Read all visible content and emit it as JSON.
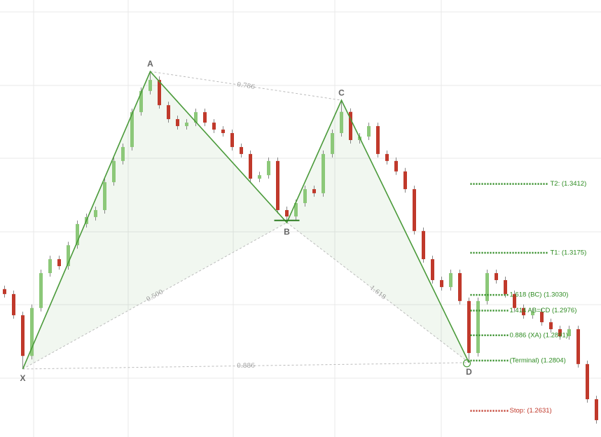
{
  "chart_data": {
    "type": "candlestick",
    "xlim": [
      -0.5,
      65.5
    ],
    "ylim": [
      1.2541,
      1.4045
    ],
    "up_color": "#8cc879",
    "down_color": "#c0392b",
    "ohlc": [
      [
        1.305,
        1.3062,
        1.3021,
        1.3033
      ],
      [
        1.3033,
        1.3045,
        1.2948,
        1.296
      ],
      [
        1.296,
        1.2972,
        1.2775,
        1.282
      ],
      [
        1.282,
        1.2997,
        1.2808,
        1.2985
      ],
      [
        1.2985,
        1.3117,
        1.2973,
        1.3105
      ],
      [
        1.3105,
        1.3165,
        1.3093,
        1.3153
      ],
      [
        1.3153,
        1.3165,
        1.3117,
        1.3129
      ],
      [
        1.3129,
        1.3213,
        1.3117,
        1.3201
      ],
      [
        1.3201,
        1.3286,
        1.3189,
        1.3274
      ],
      [
        1.3274,
        1.331,
        1.3262,
        1.3298
      ],
      [
        1.3298,
        1.3334,
        1.3286,
        1.3322
      ],
      [
        1.3322,
        1.343,
        1.331,
        1.3418
      ],
      [
        1.3418,
        1.3503,
        1.3406,
        1.3491
      ],
      [
        1.3491,
        1.3551,
        1.3479,
        1.3539
      ],
      [
        1.3539,
        1.3671,
        1.3527,
        1.3659
      ],
      [
        1.3659,
        1.3744,
        1.3647,
        1.3732
      ],
      [
        1.3732,
        1.3799,
        1.372,
        1.377
      ],
      [
        1.377,
        1.3782,
        1.3671,
        1.3683
      ],
      [
        1.3683,
        1.3695,
        1.3623,
        1.3635
      ],
      [
        1.3635,
        1.3647,
        1.3599,
        1.3611
      ],
      [
        1.3611,
        1.3635,
        1.3599,
        1.3623
      ],
      [
        1.3623,
        1.3671,
        1.3611,
        1.3659
      ],
      [
        1.3659,
        1.3671,
        1.3611,
        1.3623
      ],
      [
        1.3623,
        1.3635,
        1.3587,
        1.3599
      ],
      [
        1.3599,
        1.3611,
        1.3575,
        1.3587
      ],
      [
        1.3587,
        1.3599,
        1.3527,
        1.3539
      ],
      [
        1.3539,
        1.3551,
        1.3503,
        1.3515
      ],
      [
        1.3515,
        1.3527,
        1.3418,
        1.343
      ],
      [
        1.343,
        1.3454,
        1.3418,
        1.3442
      ],
      [
        1.3442,
        1.3503,
        1.343,
        1.3491
      ],
      [
        1.3491,
        1.3503,
        1.331,
        1.3322
      ],
      [
        1.3322,
        1.3334,
        1.3279,
        1.33
      ],
      [
        1.33,
        1.3358,
        1.3288,
        1.3346
      ],
      [
        1.3346,
        1.3406,
        1.3334,
        1.3394
      ],
      [
        1.3394,
        1.3406,
        1.3368,
        1.338
      ],
      [
        1.338,
        1.3527,
        1.3368,
        1.3515
      ],
      [
        1.3515,
        1.3599,
        1.3503,
        1.3587
      ],
      [
        1.3587,
        1.37,
        1.3575,
        1.366
      ],
      [
        1.366,
        1.3672,
        1.3551,
        1.3563
      ],
      [
        1.3563,
        1.3587,
        1.3551,
        1.3575
      ],
      [
        1.3575,
        1.3623,
        1.3563,
        1.3611
      ],
      [
        1.3611,
        1.3623,
        1.3503,
        1.3515
      ],
      [
        1.3515,
        1.3527,
        1.3479,
        1.3491
      ],
      [
        1.3491,
        1.3503,
        1.3443,
        1.3455
      ],
      [
        1.3455,
        1.3467,
        1.3382,
        1.3394
      ],
      [
        1.3394,
        1.3406,
        1.3238,
        1.325
      ],
      [
        1.325,
        1.3262,
        1.3141,
        1.3153
      ],
      [
        1.3153,
        1.3165,
        1.3069,
        1.3081
      ],
      [
        1.3081,
        1.3093,
        1.3045,
        1.3057
      ],
      [
        1.3057,
        1.3117,
        1.3045,
        1.3105
      ],
      [
        1.3105,
        1.3117,
        1.2997,
        1.3009
      ],
      [
        1.3009,
        1.3021,
        1.2797,
        1.283
      ],
      [
        1.283,
        1.3021,
        1.2818,
        1.3009
      ],
      [
        1.3009,
        1.3117,
        1.2997,
        1.3105
      ],
      [
        1.3105,
        1.3117,
        1.3069,
        1.3081
      ],
      [
        1.3081,
        1.3093,
        1.3021,
        1.3033
      ],
      [
        1.3033,
        1.3045,
        1.2973,
        1.2985
      ],
      [
        1.2985,
        1.2997,
        1.2948,
        1.296
      ],
      [
        1.296,
        1.2984,
        1.2948,
        1.2972
      ],
      [
        1.2972,
        1.2984,
        1.2924,
        1.2936
      ],
      [
        1.2936,
        1.2948,
        1.29,
        1.2912
      ],
      [
        1.2912,
        1.2924,
        1.2876,
        1.2888
      ],
      [
        1.2888,
        1.2924,
        1.2876,
        1.2912
      ],
      [
        1.2912,
        1.2924,
        1.278,
        1.2792
      ],
      [
        1.2792,
        1.2804,
        1.2659,
        1.2671
      ],
      [
        1.2671,
        1.2683,
        1.2587,
        1.2599
      ]
    ],
    "pattern_color": "#4a9a3a",
    "points": [
      {
        "label": "X",
        "index": 2,
        "price": 1.2775
      },
      {
        "label": "A",
        "index": 16,
        "price": 1.3799
      },
      {
        "label": "B",
        "index": 31,
        "price": 1.3279
      },
      {
        "label": "C",
        "index": 37,
        "price": 1.37
      },
      {
        "label": "D",
        "index": 51,
        "price": 1.2797
      }
    ],
    "ratios": [
      {
        "value": 0.786,
        "label": "0.786"
      },
      {
        "value": 0.5,
        "label": "0.500"
      },
      {
        "value": 1.618,
        "label": "1.618"
      },
      {
        "value": 0.886,
        "label": "0.886"
      }
    ],
    "levels": [
      {
        "label": "T2: (1.3412)",
        "value": 1.3412,
        "color": "#2e8b22"
      },
      {
        "label": "T1: (1.3175)",
        "value": 1.3175,
        "color": "#2e8b22"
      },
      {
        "label": "1.618 (BC) (1.3030)",
        "value": 1.303,
        "color": "#2e8b22"
      },
      {
        "label": "1.414 AB=CD (1.2976)",
        "value": 1.2976,
        "color": "#2e8b22"
      },
      {
        "label": "0.886 (XA) (1.2891)",
        "value": 1.2891,
        "color": "#2e8b22"
      },
      {
        "label": "(Terminal) (1.2804)",
        "value": 1.2804,
        "color": "#2e8b22"
      },
      {
        "label": "Stop: (1.2631)",
        "value": 1.2631,
        "color": "#c0392b"
      }
    ]
  }
}
